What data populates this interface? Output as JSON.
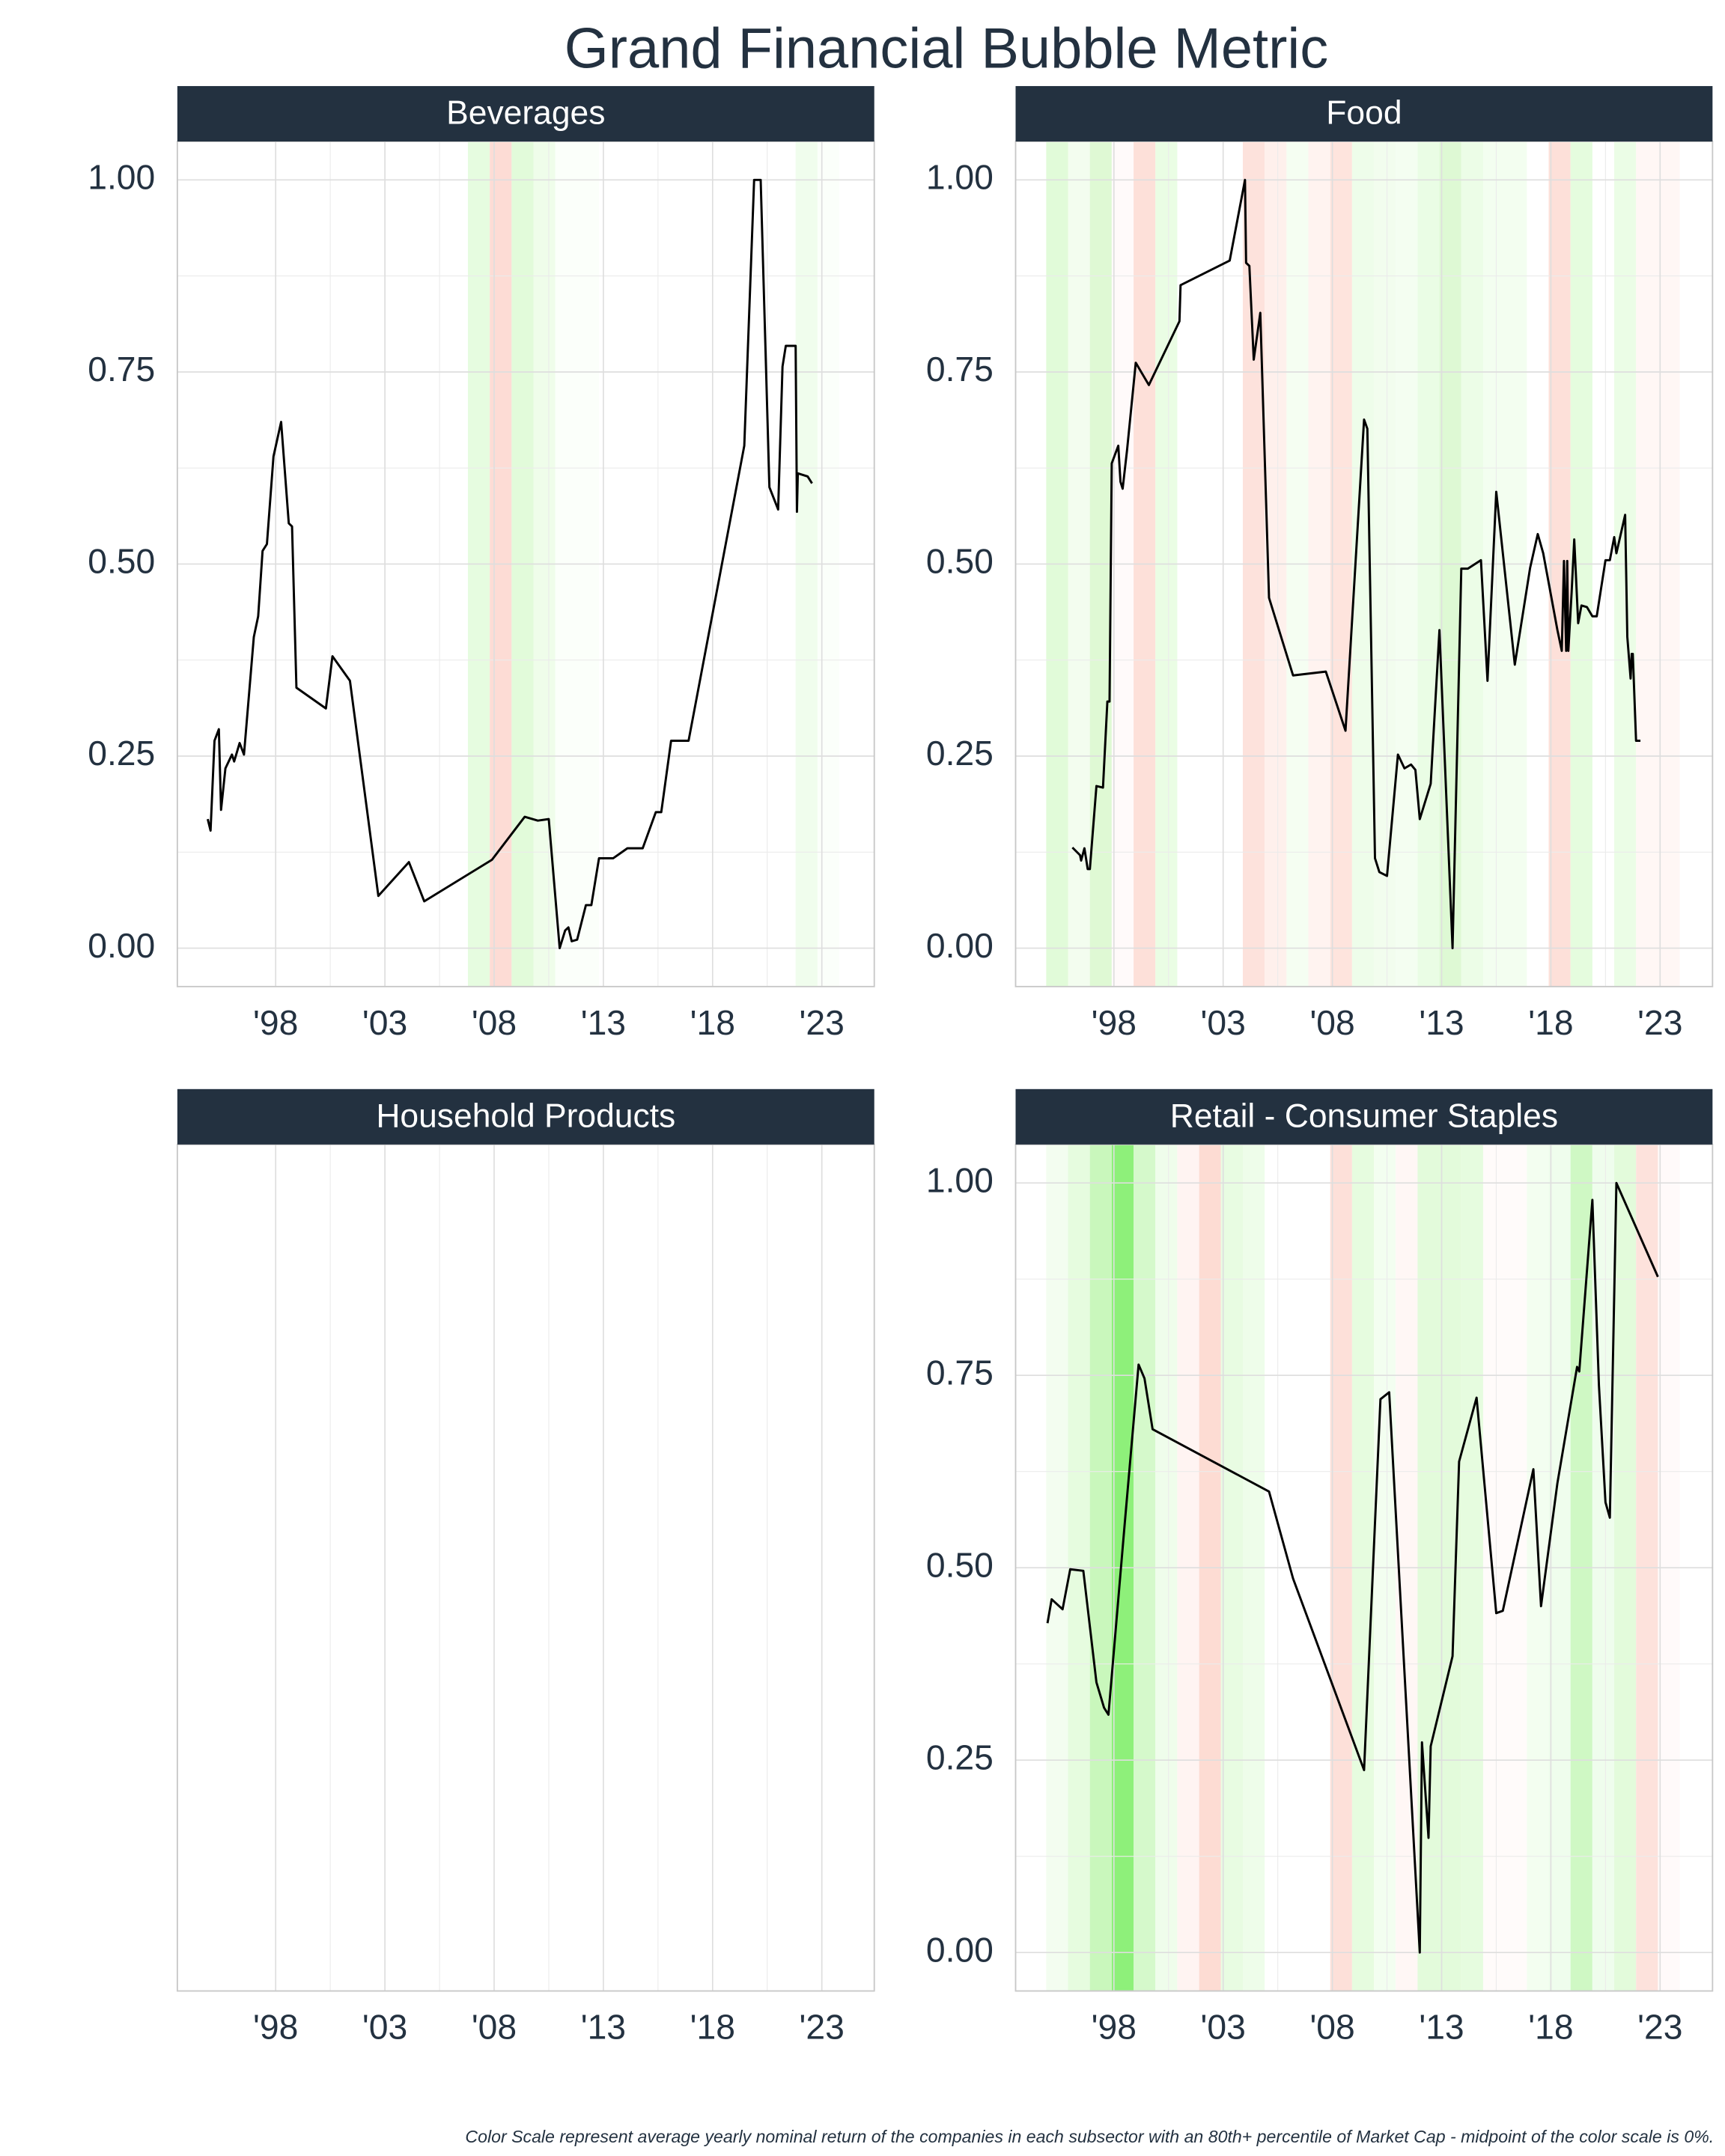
{
  "title": "Grand Financial Bubble Metric",
  "note": "Color Scale represent average yearly nominal return of the companies in each subsector with an 80th+ percentile of Market Cap - midpoint of the color scale is 0%.",
  "chart_data": [
    {
      "type": "line",
      "title": "Beverages",
      "color": "#000000",
      "grid": true,
      "xlim": [
        1993.5,
        2025.4
      ],
      "ylim": [
        -0.05,
        1.05
      ],
      "xticks": [
        {
          "value": 1998,
          "label": "'98"
        },
        {
          "value": 2003,
          "label": "'03"
        },
        {
          "value": 2008,
          "label": "'08"
        },
        {
          "value": 2013,
          "label": "'13"
        },
        {
          "value": 2018,
          "label": "'18"
        },
        {
          "value": 2023,
          "label": "'23"
        }
      ],
      "yticks": [
        {
          "value": 0,
          "label": "0.00"
        },
        {
          "value": 0.25,
          "label": "0.25"
        },
        {
          "value": 0.5,
          "label": "0.50"
        },
        {
          "value": 0.75,
          "label": "0.75"
        },
        {
          "value": 1,
          "label": "1.00"
        }
      ],
      "bands": [
        {
          "from": 2006.8,
          "to": 2007.8,
          "color": "#e6fce0"
        },
        {
          "from": 2007.8,
          "to": 2008.8,
          "color": "#fddcd5"
        },
        {
          "from": 2008.8,
          "to": 2009.8,
          "color": "#e2fbda"
        },
        {
          "from": 2009.8,
          "to": 2010.8,
          "color": "#effdea"
        },
        {
          "from": 2010.8,
          "to": 2012.8,
          "color": "#fbfffa"
        },
        {
          "from": 2021.8,
          "to": 2022.8,
          "color": "#f0fded"
        },
        {
          "from": 2022.8,
          "to": 2023.8,
          "color": "#fbfffa"
        }
      ],
      "x": [
        1994.89,
        1995.02,
        1995.2,
        1995.4,
        1995.5,
        1995.7,
        1996.0,
        1996.1,
        1996.35,
        1996.55,
        1997.0,
        1997.2,
        1997.4,
        1997.6,
        1997.9,
        1998.25,
        1998.6,
        1998.75,
        1998.95,
        2000.3,
        2000.6,
        2001.4,
        2002.7,
        2004.1,
        2004.8,
        2007.9,
        2009.4,
        2010.0,
        2010.5,
        2011.0,
        2011.25,
        2011.4,
        2011.55,
        2011.8,
        2012.2,
        2012.45,
        2012.8,
        2013.45,
        2014.1,
        2014.8,
        2015.4,
        2015.65,
        2016.1,
        2016.9,
        2019.45,
        2019.9,
        2020.2,
        2020.6,
        2021.0,
        2021.2,
        2021.35,
        2021.8,
        2021.86,
        2021.9,
        2022.35,
        2022.55
      ],
      "values": [
        0.168,
        0.153,
        0.27,
        0.285,
        0.18,
        0.234,
        0.252,
        0.243,
        0.267,
        0.252,
        0.405,
        0.432,
        0.517,
        0.526,
        0.64,
        0.685,
        0.553,
        0.549,
        0.339,
        0.312,
        0.38,
        0.348,
        0.068,
        0.112,
        0.061,
        0.115,
        0.171,
        0.166,
        0.168,
        0.0,
        0.023,
        0.027,
        0.009,
        0.011,
        0.056,
        0.056,
        0.117,
        0.117,
        0.13,
        0.13,
        0.177,
        0.177,
        0.27,
        0.27,
        0.654,
        1.0,
        1.0,
        0.6,
        0.571,
        0.757,
        0.784,
        0.784,
        0.568,
        0.618,
        0.614,
        0.605
      ]
    },
    {
      "type": "line",
      "title": "Food",
      "color": "#000000",
      "grid": true,
      "xlim": [
        1993.5,
        2025.4
      ],
      "ylim": [
        -0.05,
        1.05
      ],
      "xticks": [
        {
          "value": 1998,
          "label": "'98"
        },
        {
          "value": 2003,
          "label": "'03"
        },
        {
          "value": 2008,
          "label": "'08"
        },
        {
          "value": 2013,
          "label": "'13"
        },
        {
          "value": 2018,
          "label": "'18"
        },
        {
          "value": 2023,
          "label": "'23"
        }
      ],
      "yticks": [
        {
          "value": 0,
          "label": "0.00"
        },
        {
          "value": 0.25,
          "label": "0.25"
        },
        {
          "value": 0.5,
          "label": "0.50"
        },
        {
          "value": 0.75,
          "label": "0.75"
        },
        {
          "value": 1,
          "label": "1.00"
        }
      ],
      "bands": [
        {
          "from": 1994.9,
          "to": 1995.9,
          "color": "#e1fbd9"
        },
        {
          "from": 1995.9,
          "to": 1996.9,
          "color": "#f3fdef"
        },
        {
          "from": 1996.9,
          "to": 1997.9,
          "color": "#dff9d4"
        },
        {
          "from": 1997.9,
          "to": 1998.9,
          "color": "#fffafa"
        },
        {
          "from": 1998.9,
          "to": 1999.9,
          "color": "#fde0d9"
        },
        {
          "from": 1999.9,
          "to": 2000.9,
          "color": "#eafde4"
        },
        {
          "from": 2003.9,
          "to": 2004.9,
          "color": "#fde2dc"
        },
        {
          "from": 2004.9,
          "to": 2005.9,
          "color": "#fef0ec"
        },
        {
          "from": 2005.9,
          "to": 2006.9,
          "color": "#f5fef2"
        },
        {
          "from": 2006.9,
          "to": 2007.9,
          "color": "#fff3f0"
        },
        {
          "from": 2007.9,
          "to": 2008.9,
          "color": "#fee4dd"
        },
        {
          "from": 2008.9,
          "to": 2009.9,
          "color": "#eefdea"
        },
        {
          "from": 2009.9,
          "to": 2010.9,
          "color": "#f2fdee"
        },
        {
          "from": 2010.9,
          "to": 2011.9,
          "color": "#f4fef1"
        },
        {
          "from": 2011.9,
          "to": 2012.9,
          "color": "#eafde5"
        },
        {
          "from": 2012.9,
          "to": 2013.9,
          "color": "#def9d4"
        },
        {
          "from": 2013.9,
          "to": 2014.9,
          "color": "#ecfde7"
        },
        {
          "from": 2014.9,
          "to": 2016.9,
          "color": "#f3fef0"
        },
        {
          "from": 2017.9,
          "to": 2018.9,
          "color": "#fde0d9"
        },
        {
          "from": 2018.9,
          "to": 2019.9,
          "color": "#e5fcde"
        },
        {
          "from": 2020.9,
          "to": 2021.9,
          "color": "#ebfde6"
        },
        {
          "from": 2021.9,
          "to": 2023.9,
          "color": "#fff7f5"
        }
      ],
      "x": [
        1996.1,
        1996.45,
        1996.5,
        1996.65,
        1996.8,
        1996.9,
        1997.2,
        1997.5,
        1997.7,
        1997.8,
        1997.9,
        1998.2,
        1998.3,
        1998.4,
        1998.6,
        1999.0,
        1999.6,
        2001.0,
        2001.05,
        2003.3,
        2004.0,
        2004.05,
        2004.2,
        2004.4,
        2004.7,
        2005.1,
        2006.2,
        2007.7,
        2008.6,
        2009.45,
        2009.6,
        2009.95,
        2010.15,
        2010.5,
        2011.0,
        2011.3,
        2011.6,
        2011.8,
        2012.0,
        2012.5,
        2012.9,
        2013.5,
        2013.9,
        2014.2,
        2014.8,
        2015.1,
        2015.5,
        2016.35,
        2017.05,
        2017.4,
        2017.65,
        2018.3,
        2018.5,
        2018.6,
        2018.7,
        2018.75,
        2018.8,
        2018.95,
        2019.07,
        2019.25,
        2019.4,
        2019.65,
        2019.9,
        2020.1,
        2020.5,
        2020.7,
        2020.9,
        2021.0,
        2021.4,
        2021.5,
        2021.65,
        2021.7,
        2021.75,
        2021.9,
        2022.1
      ],
      "values": [
        0.131,
        0.121,
        0.114,
        0.13,
        0.103,
        0.103,
        0.211,
        0.209,
        0.321,
        0.321,
        0.631,
        0.654,
        0.607,
        0.598,
        0.648,
        0.762,
        0.733,
        0.816,
        0.863,
        0.895,
        1.0,
        0.892,
        0.888,
        0.766,
        0.827,
        0.456,
        0.355,
        0.36,
        0.283,
        0.688,
        0.676,
        0.117,
        0.099,
        0.094,
        0.252,
        0.234,
        0.239,
        0.232,
        0.168,
        0.214,
        0.414,
        0.0,
        0.494,
        0.494,
        0.505,
        0.348,
        0.594,
        0.369,
        0.495,
        0.539,
        0.514,
        0.414,
        0.387,
        0.504,
        0.387,
        0.504,
        0.387,
        0.463,
        0.532,
        0.423,
        0.446,
        0.444,
        0.432,
        0.432,
        0.505,
        0.505,
        0.535,
        0.514,
        0.564,
        0.405,
        0.351,
        0.383,
        0.383,
        0.27,
        0.27
      ]
    },
    {
      "type": "line",
      "title": "Household Products",
      "color": "#000000",
      "grid": true,
      "xlim": [
        1993.5,
        2025.4
      ],
      "xticks": [
        {
          "value": 1998,
          "label": "'98"
        },
        {
          "value": 2003,
          "label": "'03"
        },
        {
          "value": 2008,
          "label": "'08"
        },
        {
          "value": 2013,
          "label": "'13"
        },
        {
          "value": 2018,
          "label": "'18"
        },
        {
          "value": 2023,
          "label": "'23"
        }
      ],
      "x": [],
      "values": []
    },
    {
      "type": "line",
      "title": "Retail - Consumer Staples",
      "color": "#000000",
      "grid": true,
      "xlim": [
        1993.5,
        2025.4
      ],
      "ylim": [
        -0.05,
        1.05
      ],
      "xticks": [
        {
          "value": 1998,
          "label": "'98"
        },
        {
          "value": 2003,
          "label": "'03"
        },
        {
          "value": 2008,
          "label": "'08"
        },
        {
          "value": 2013,
          "label": "'13"
        },
        {
          "value": 2018,
          "label": "'18"
        },
        {
          "value": 2023,
          "label": "'23"
        }
      ],
      "yticks": [
        {
          "value": 0,
          "label": "0.00"
        },
        {
          "value": 0.25,
          "label": "0.25"
        },
        {
          "value": 0.5,
          "label": "0.50"
        },
        {
          "value": 0.75,
          "label": "0.75"
        },
        {
          "value": 1,
          "label": "1.00"
        }
      ],
      "bands": [
        {
          "from": 1994.9,
          "to": 1995.9,
          "color": "#f3fdf0"
        },
        {
          "from": 1995.9,
          "to": 1996.9,
          "color": "#e6fcdf"
        },
        {
          "from": 1996.9,
          "to": 1997.9,
          "color": "#c9f7bc"
        },
        {
          "from": 1997.9,
          "to": 1998.9,
          "color": "#8ef07a"
        },
        {
          "from": 1998.9,
          "to": 1999.9,
          "color": "#d5f9cb"
        },
        {
          "from": 1999.9,
          "to": 2000.9,
          "color": "#effdeb"
        },
        {
          "from": 2000.9,
          "to": 2001.9,
          "color": "#fff4f2"
        },
        {
          "from": 2001.9,
          "to": 2002.9,
          "color": "#fddcd3"
        },
        {
          "from": 2002.9,
          "to": 2003.9,
          "color": "#e8fce2"
        },
        {
          "from": 2003.9,
          "to": 2004.9,
          "color": "#eefdea"
        },
        {
          "from": 2007.9,
          "to": 2008.9,
          "color": "#fde0d9"
        },
        {
          "from": 2008.9,
          "to": 2009.9,
          "color": "#e6fcdf"
        },
        {
          "from": 2009.9,
          "to": 2010.9,
          "color": "#f3fef0"
        },
        {
          "from": 2010.9,
          "to": 2011.9,
          "color": "#fff7f5"
        },
        {
          "from": 2011.9,
          "to": 2013.9,
          "color": "#e3fbdb"
        },
        {
          "from": 2013.9,
          "to": 2014.9,
          "color": "#e6fcdf"
        },
        {
          "from": 2014.9,
          "to": 2016.9,
          "color": "#fffbfa"
        },
        {
          "from": 2016.9,
          "to": 2017.9,
          "color": "#f3fef0"
        },
        {
          "from": 2017.9,
          "to": 2018.9,
          "color": "#effded"
        },
        {
          "from": 2018.9,
          "to": 2019.9,
          "color": "#cff8c4"
        },
        {
          "from": 2019.9,
          "to": 2020.9,
          "color": "#effded"
        },
        {
          "from": 2020.9,
          "to": 2021.9,
          "color": "#e3fbdb"
        },
        {
          "from": 2021.9,
          "to": 2022.9,
          "color": "#fde2dc"
        },
        {
          "from": 2022.9,
          "to": 2023.9,
          "color": "#fffafa"
        }
      ],
      "x": [
        1994.96,
        1995.15,
        1995.65,
        1996.0,
        1996.6,
        1997.2,
        1997.55,
        1997.75,
        1998.5,
        1999.13,
        1999.4,
        1999.77,
        2005.1,
        2006.2,
        2009.45,
        2010.2,
        2010.6,
        2012.0,
        2012.1,
        2012.4,
        2012.5,
        2013.5,
        2013.8,
        2014.6,
        2015.5,
        2015.8,
        2017.2,
        2017.55,
        2018.3,
        2019.2,
        2019.3,
        2019.9,
        2020.2,
        2020.5,
        2020.7,
        2021.0,
        2022.9
      ],
      "values": [
        0.428,
        0.459,
        0.446,
        0.498,
        0.496,
        0.351,
        0.318,
        0.309,
        0.559,
        0.764,
        0.746,
        0.68,
        0.599,
        0.486,
        0.237,
        0.719,
        0.728,
        0.0,
        0.273,
        0.149,
        0.268,
        0.385,
        0.638,
        0.721,
        0.441,
        0.444,
        0.628,
        0.45,
        0.61,
        0.761,
        0.755,
        0.978,
        0.737,
        0.585,
        0.565,
        1.0,
        0.878
      ]
    }
  ]
}
